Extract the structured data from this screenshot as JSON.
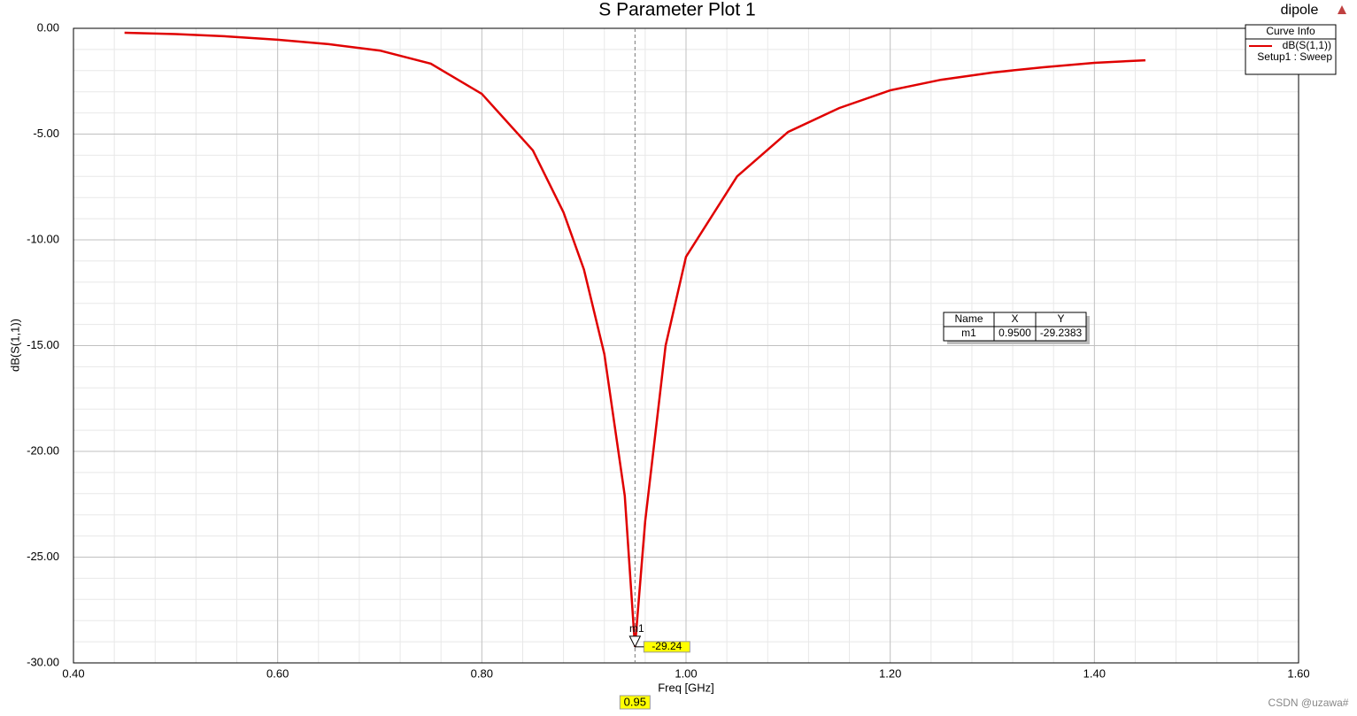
{
  "chart_data": {
    "type": "line",
    "title": "S Parameter Plot 1",
    "project": "dipole",
    "x_label": "Freq [GHz]",
    "y_label": "dB(S(1,1))",
    "x": [
      0.45,
      0.5,
      0.55,
      0.6,
      0.65,
      0.7,
      0.75,
      0.8,
      0.85,
      0.88,
      0.9,
      0.92,
      0.94,
      0.95,
      0.96,
      0.98,
      1.0,
      1.05,
      1.1,
      1.15,
      1.2,
      1.25,
      1.3,
      1.35,
      1.4,
      1.45
    ],
    "series": [
      {
        "name": "dB(S(1,1))",
        "subtitle": "Setup1 : Sweep",
        "color": "#e00000",
        "values": [
          -0.21,
          -0.27,
          -0.38,
          -0.54,
          -0.75,
          -1.05,
          -1.67,
          -3.1,
          -5.77,
          -8.7,
          -11.4,
          -15.4,
          -22.1,
          -29.24,
          -23.3,
          -15.0,
          -10.8,
          -7.0,
          -4.9,
          -3.77,
          -2.93,
          -2.43,
          -2.09,
          -1.84,
          -1.63,
          -1.51
        ]
      }
    ],
    "legend_title": "Curve Info",
    "xlim": [
      0.4,
      1.6
    ],
    "ylim": [
      -30,
      0
    ],
    "xticks": [
      {
        "value": 0.4,
        "label": "0.40"
      },
      {
        "value": 0.6,
        "label": "0.60"
      },
      {
        "value": 0.8,
        "label": "0.80"
      },
      {
        "value": 1.0,
        "label": "1.00"
      },
      {
        "value": 1.2,
        "label": "1.20"
      },
      {
        "value": 1.4,
        "label": "1.40"
      },
      {
        "value": 1.6,
        "label": "1.60"
      }
    ],
    "yticks": [
      {
        "value": 0,
        "label": "0.00"
      },
      {
        "value": -5,
        "label": "-5.00"
      },
      {
        "value": -10,
        "label": "-10.00"
      },
      {
        "value": -15,
        "label": "-15.00"
      },
      {
        "value": -20,
        "label": "-20.00"
      },
      {
        "value": -25,
        "label": "-25.00"
      },
      {
        "value": -30,
        "label": "-30.00"
      }
    ],
    "grid": true,
    "marker": {
      "name": "m1",
      "x": 0.95,
      "y": -29.24,
      "x_label": "0.95",
      "y_label": "-29.24"
    },
    "marker_table": {
      "headers": [
        "Name",
        "X",
        "Y"
      ],
      "row": [
        "m1",
        "0.9500",
        "-29.2383"
      ]
    },
    "watermark": "CSDN @uzawa#"
  }
}
